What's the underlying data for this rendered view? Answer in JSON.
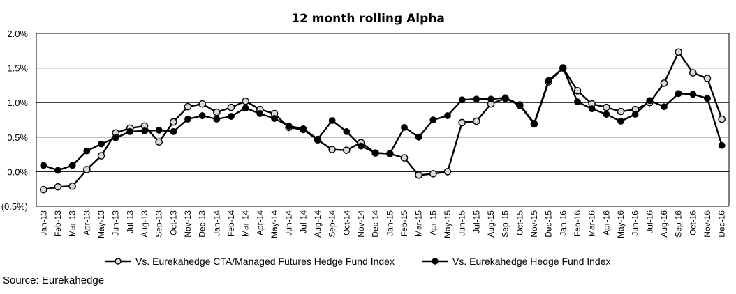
{
  "chart_data": {
    "type": "line",
    "title": "12 month rolling Alpha",
    "xlabel": "",
    "ylabel": "",
    "ylim": [
      -0.5,
      2.0
    ],
    "yticks": [
      "2.0%",
      "1.5%",
      "1.0%",
      "0.5%",
      "0.0%",
      "(0.5%)"
    ],
    "ytick_values": [
      2.0,
      1.5,
      1.0,
      0.5,
      0.0,
      -0.5
    ],
    "grid": "horizontal",
    "legend_position": "bottom",
    "categories": [
      "Jan-13",
      "Feb-13",
      "Mar-13",
      "Apr-13",
      "May-13",
      "Jun-13",
      "Jul-13",
      "Aug-13",
      "Sep-13",
      "Oct-13",
      "Nov-13",
      "Dec-13",
      "Jan-14",
      "Feb-14",
      "Mar-14",
      "Apr-14",
      "May-14",
      "Jun-14",
      "Jul-14",
      "Aug-14",
      "Sep-14",
      "Oct-14",
      "Nov-14",
      "Dec-14",
      "Jan-15",
      "Feb-15",
      "Mar-15",
      "Apr-15",
      "May-15",
      "Jun-15",
      "Jul-15",
      "Aug-15",
      "Sep-15",
      "Oct-15",
      "Nov-15",
      "Dec-15",
      "Jan-16",
      "Feb-16",
      "Mar-16",
      "Apr-16",
      "May-16",
      "Jun-16",
      "Jul-16",
      "Aug-16",
      "Sep-16",
      "Oct-16",
      "Nov-16",
      "Dec-16"
    ],
    "series": [
      {
        "name": "Vs. Eurekahedge CTA/Managed Futures Hedge Fund Index",
        "marker": "open",
        "values": [
          -0.26,
          -0.22,
          -0.21,
          0.03,
          0.23,
          0.56,
          0.63,
          0.66,
          0.43,
          0.72,
          0.94,
          0.98,
          0.86,
          0.93,
          1.02,
          0.9,
          0.84,
          0.64,
          0.61,
          0.46,
          0.32,
          0.31,
          0.42,
          0.27,
          0.26,
          0.2,
          -0.05,
          -0.03,
          0.0,
          0.71,
          0.73,
          0.98,
          1.06,
          0.96,
          0.69,
          1.3,
          1.5,
          1.17,
          0.98,
          0.93,
          0.87,
          0.9,
          1.0,
          1.28,
          1.73,
          1.43,
          1.35,
          0.76
        ]
      },
      {
        "name": "Vs. Eurekahedge Hedge Fund Index",
        "marker": "filled",
        "values": [
          0.09,
          0.02,
          0.09,
          0.3,
          0.4,
          0.49,
          0.58,
          0.59,
          0.6,
          0.58,
          0.76,
          0.81,
          0.76,
          0.8,
          0.92,
          0.84,
          0.77,
          0.66,
          0.62,
          0.47,
          0.74,
          0.58,
          0.37,
          0.27,
          0.26,
          0.64,
          0.5,
          0.75,
          0.81,
          1.04,
          1.05,
          1.05,
          1.07,
          0.97,
          0.7,
          1.32,
          1.5,
          1.01,
          0.91,
          0.83,
          0.73,
          0.83,
          1.03,
          0.94,
          1.13,
          1.12,
          1.06,
          0.38
        ]
      }
    ],
    "source": "Source: Eurekahedge"
  }
}
